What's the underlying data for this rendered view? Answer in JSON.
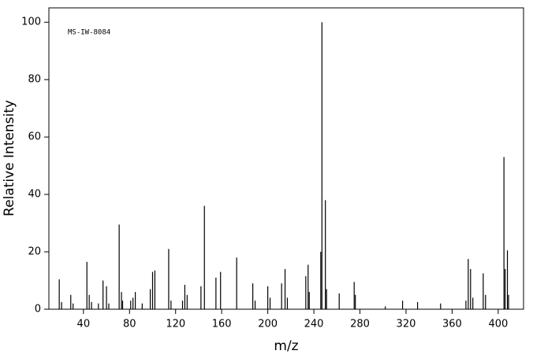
{
  "chart_data": {
    "type": "stick",
    "annotation": "MS-IW-8084",
    "x_label": "m/z",
    "y_label": "Relative Intensity",
    "color": "#000000",
    "xlim": [
      10,
      422
    ],
    "ylim": [
      0,
      105
    ],
    "xticks": [
      40,
      80,
      120,
      160,
      200,
      240,
      280,
      320,
      360,
      400
    ],
    "yticks": [
      0,
      20,
      40,
      60,
      80,
      100
    ],
    "x": [
      19,
      21,
      29,
      31,
      43,
      45,
      47,
      53,
      57,
      60,
      62,
      71,
      73,
      74,
      81,
      83,
      85,
      91,
      98,
      100,
      102,
      114,
      116,
      126,
      128,
      130,
      142,
      145,
      155,
      159,
      173,
      187,
      189,
      200,
      202,
      212,
      215,
      217,
      233,
      235,
      236,
      246,
      247,
      250,
      251,
      262,
      275,
      276,
      302,
      317,
      330,
      350,
      372,
      374,
      376,
      378,
      387,
      389,
      405,
      406,
      408,
      409
    ],
    "values": [
      10.4,
      2.5,
      5,
      2,
      16.5,
      5,
      2.5,
      2,
      10,
      8,
      2,
      29.5,
      6,
      3,
      3,
      4,
      6,
      2,
      7,
      13,
      13.5,
      21,
      3,
      3,
      8.5,
      5,
      8,
      36,
      11,
      13,
      18,
      9,
      3,
      8,
      4,
      9,
      14,
      4,
      11.5,
      15.5,
      6,
      20,
      100,
      38,
      7,
      5.5,
      9.5,
      5,
      1,
      3,
      2.5,
      2,
      3,
      17.5,
      14,
      4,
      12.5,
      5,
      53,
      14,
      20.5,
      5
    ]
  }
}
